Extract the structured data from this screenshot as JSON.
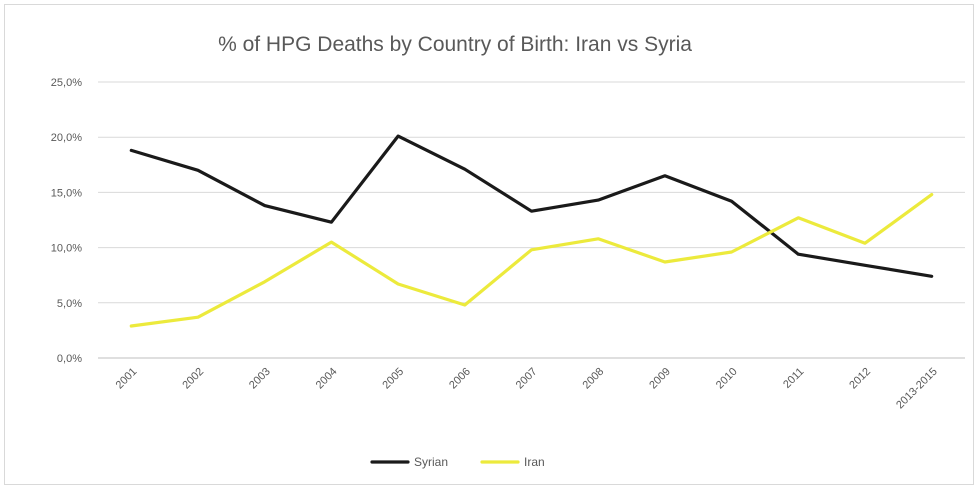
{
  "chart_data": {
    "type": "line",
    "title": "% of HPG Deaths by Country of Birth: Iran vs Syria",
    "xlabel": "",
    "ylabel": "",
    "categories": [
      "2001",
      "2002",
      "2003",
      "2004",
      "2005",
      "2006",
      "2007",
      "2008",
      "2009",
      "2010",
      "2011",
      "2012",
      "2013-2015"
    ],
    "y_ticks": [
      "0,0%",
      "5,0%",
      "10,0%",
      "15,0%",
      "20,0%",
      "25,0%"
    ],
    "ylim": [
      0,
      25
    ],
    "grid": true,
    "legend_position": "bottom",
    "series": [
      {
        "name": "Syrian",
        "color": "#1a1a1a",
        "values": [
          18.8,
          17.0,
          13.8,
          12.3,
          20.1,
          17.1,
          13.3,
          14.3,
          16.5,
          14.2,
          9.4,
          8.4,
          7.4
        ]
      },
      {
        "name": "Iran",
        "color": "#ecea3c",
        "values": [
          2.9,
          3.7,
          6.9,
          10.5,
          6.7,
          4.8,
          9.8,
          10.8,
          8.7,
          9.6,
          12.7,
          10.4,
          14.8
        ]
      }
    ]
  }
}
